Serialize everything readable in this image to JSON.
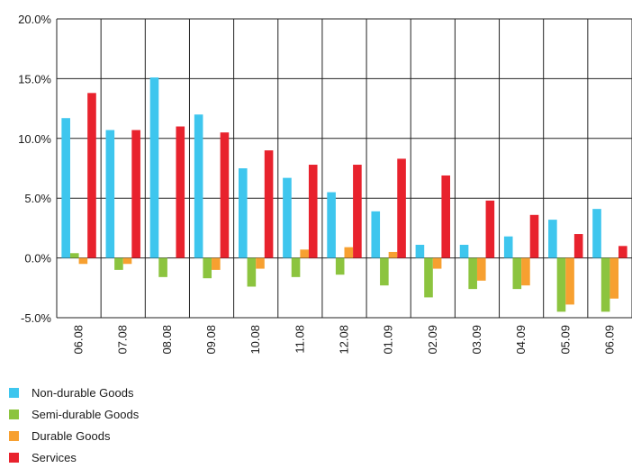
{
  "chart_data": {
    "type": "bar",
    "categories": [
      "06.08",
      "07.08",
      "08.08",
      "09.08",
      "10.08",
      "11.08",
      "12.08",
      "01.09",
      "02.09",
      "03.09",
      "04.09",
      "05.09",
      "06.09"
    ],
    "series": [
      {
        "name": "Non-durable Goods",
        "color": "#3ec6ee",
        "values": [
          11.7,
          10.7,
          15.1,
          12.0,
          7.5,
          6.7,
          5.5,
          3.9,
          1.1,
          1.1,
          1.8,
          3.2,
          4.1
        ]
      },
      {
        "name": "Semi-durable Goods",
        "color": "#8cc43f",
        "values": [
          0.4,
          -1.0,
          -1.6,
          -1.7,
          -2.4,
          -1.6,
          -1.4,
          -2.3,
          -3.3,
          -2.6,
          -2.6,
          -4.5,
          -4.5
        ]
      },
      {
        "name": "Durable Goods",
        "color": "#f7a030",
        "values": [
          -0.5,
          -0.5,
          null,
          -1.0,
          -0.9,
          0.7,
          0.9,
          0.5,
          -0.9,
          -1.9,
          -2.3,
          -3.9,
          -3.4
        ]
      },
      {
        "name": "Services",
        "color": "#e8222d",
        "values": [
          13.8,
          10.7,
          11.0,
          10.5,
          9.0,
          7.8,
          7.8,
          8.3,
          6.9,
          4.8,
          3.6,
          2.0,
          1.0
        ]
      }
    ],
    "yticks": [
      "20.0%",
      "15.0%",
      "10.0%",
      "5.0%",
      "0.0%",
      "-5.0%"
    ],
    "ylim": [
      -5,
      20
    ],
    "grid": true,
    "legend_position": "bottom-left"
  }
}
